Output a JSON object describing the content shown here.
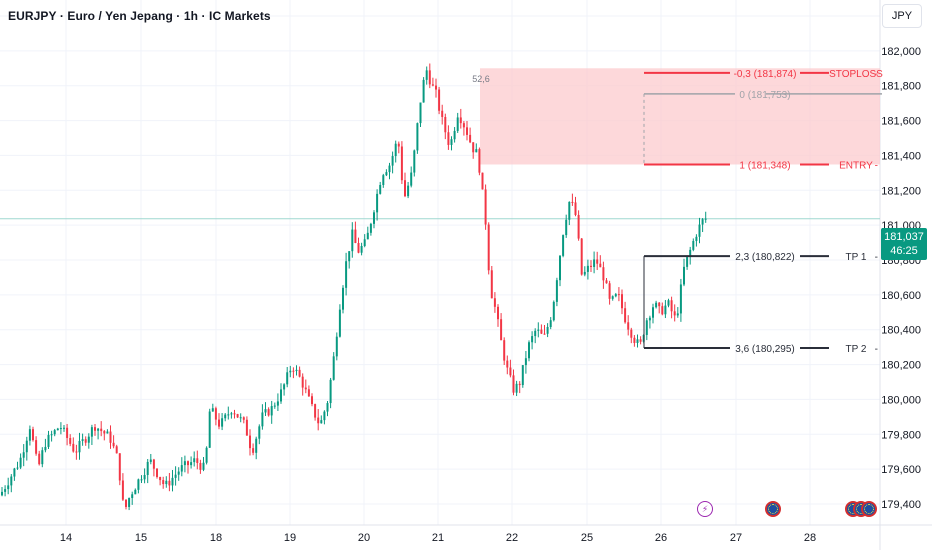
{
  "header": {
    "title": "EURJPY · Euro / Yen Jepang · 1h · IC Markets",
    "currency": "JPY"
  },
  "colors": {
    "up": "#089981",
    "down": "#f23645",
    "zone_fill": "#fccbcd",
    "level_red": "#f23645",
    "level_gray": "#a0a3a9",
    "level_dark": "#2a2e39",
    "current_line": "#9fd8d0"
  },
  "current_price": {
    "value": "181,037",
    "countdown": "46:25",
    "level": 181.037
  },
  "chart_data": {
    "type": "candlestick",
    "x_ticks": [
      "14",
      "15",
      "18",
      "19",
      "20",
      "21",
      "22",
      "25",
      "26",
      "27",
      "28"
    ],
    "y_ticks": [
      "182,200",
      "182,000",
      "181,800",
      "181,600",
      "181,400",
      "181,200",
      "181,000",
      "180,800",
      "180,600",
      "180,400",
      "180,200",
      "180,000",
      "179,800",
      "179,600",
      "179,400"
    ],
    "ylim": [
      179.31,
      182.4
    ],
    "grid": true,
    "series_path": [
      [
        0,
        179.45
      ],
      [
        10,
        179.55
      ],
      [
        20,
        179.65
      ],
      [
        30,
        179.85
      ],
      [
        38,
        179.6
      ],
      [
        45,
        179.75
      ],
      [
        60,
        179.85
      ],
      [
        75,
        179.7
      ],
      [
        95,
        179.85
      ],
      [
        110,
        179.78
      ],
      [
        118,
        179.65
      ],
      [
        124,
        179.35
      ],
      [
        130,
        179.45
      ],
      [
        140,
        179.55
      ],
      [
        150,
        179.65
      ],
      [
        165,
        179.5
      ],
      [
        180,
        179.6
      ],
      [
        195,
        179.65
      ],
      [
        205,
        179.6
      ],
      [
        210,
        179.95
      ],
      [
        220,
        179.85
      ],
      [
        232,
        179.95
      ],
      [
        245,
        179.85
      ],
      [
        252,
        179.7
      ],
      [
        262,
        179.9
      ],
      [
        272,
        179.95
      ],
      [
        282,
        180.05
      ],
      [
        292,
        180.2
      ],
      [
        302,
        180.1
      ],
      [
        312,
        179.95
      ],
      [
        320,
        179.85
      ],
      [
        328,
        180.0
      ],
      [
        334,
        180.25
      ],
      [
        340,
        180.55
      ],
      [
        346,
        180.78
      ],
      [
        352,
        180.95
      ],
      [
        358,
        180.85
      ],
      [
        366,
        180.9
      ],
      [
        374,
        181.1
      ],
      [
        382,
        181.3
      ],
      [
        390,
        181.35
      ],
      [
        398,
        181.5
      ],
      [
        404,
        181.15
      ],
      [
        412,
        181.3
      ],
      [
        420,
        181.7
      ],
      [
        426,
        181.9
      ],
      [
        432,
        181.8
      ],
      [
        436,
        181.75
      ],
      [
        442,
        181.6
      ],
      [
        450,
        181.45
      ],
      [
        458,
        181.65
      ],
      [
        466,
        181.55
      ],
      [
        472,
        181.45
      ],
      [
        478,
        181.4
      ],
      [
        482,
        181.2
      ],
      [
        486,
        181.0
      ],
      [
        490,
        180.65
      ],
      [
        496,
        180.5
      ],
      [
        502,
        180.3
      ],
      [
        508,
        180.15
      ],
      [
        514,
        180.05
      ],
      [
        520,
        180.1
      ],
      [
        528,
        180.3
      ],
      [
        536,
        180.4
      ],
      [
        544,
        180.35
      ],
      [
        552,
        180.5
      ],
      [
        558,
        180.75
      ],
      [
        564,
        181.0
      ],
      [
        570,
        181.15
      ],
      [
        576,
        181.05
      ],
      [
        582,
        180.7
      ],
      [
        588,
        180.75
      ],
      [
        596,
        180.8
      ],
      [
        604,
        180.7
      ],
      [
        610,
        180.55
      ],
      [
        618,
        180.6
      ],
      [
        626,
        180.45
      ],
      [
        634,
        180.35
      ],
      [
        640,
        180.3
      ],
      [
        646,
        180.45
      ],
      [
        654,
        180.55
      ],
      [
        660,
        180.5
      ],
      [
        668,
        180.55
      ],
      [
        676,
        180.45
      ],
      [
        684,
        180.75
      ],
      [
        690,
        180.85
      ],
      [
        696,
        180.95
      ],
      [
        702,
        181.02
      ],
      [
        706,
        181.037
      ]
    ],
    "x_tick_positions": [
      66,
      141,
      216,
      290,
      364,
      438,
      512,
      587,
      661,
      736,
      810
    ],
    "risk_zone": {
      "x_start": 480,
      "x_end": 880,
      "top": 181.9,
      "bottom": 181.348
    },
    "annotations": {
      "peak_label": "52,6",
      "levels": [
        {
          "label": "-0,3 (181,874)",
          "tag": "STOPLOSS",
          "value": 181.874,
          "color": "red"
        },
        {
          "label": "0 (181,753)",
          "tag": "",
          "value": 181.753,
          "color": "gray"
        },
        {
          "label": "1 (181,348)",
          "tag": "ENTRY",
          "value": 181.348,
          "color": "red"
        },
        {
          "label": "2,3 (180,822)",
          "tag": "TP 1",
          "value": 180.822,
          "color": "dark"
        },
        {
          "label": "3,6 (180,295)",
          "tag": "TP 2",
          "value": 180.295,
          "color": "dark"
        }
      ]
    }
  },
  "events": [
    {
      "name": "flash-event-icon",
      "kind": "flash",
      "glyph": "⚡"
    },
    {
      "name": "country-flag-icon",
      "kind": "flag"
    },
    {
      "name": "country-flag-icon",
      "kind": "flag"
    },
    {
      "name": "country-flag-icon",
      "kind": "flag"
    },
    {
      "name": "country-flag-icon",
      "kind": "flag"
    }
  ]
}
